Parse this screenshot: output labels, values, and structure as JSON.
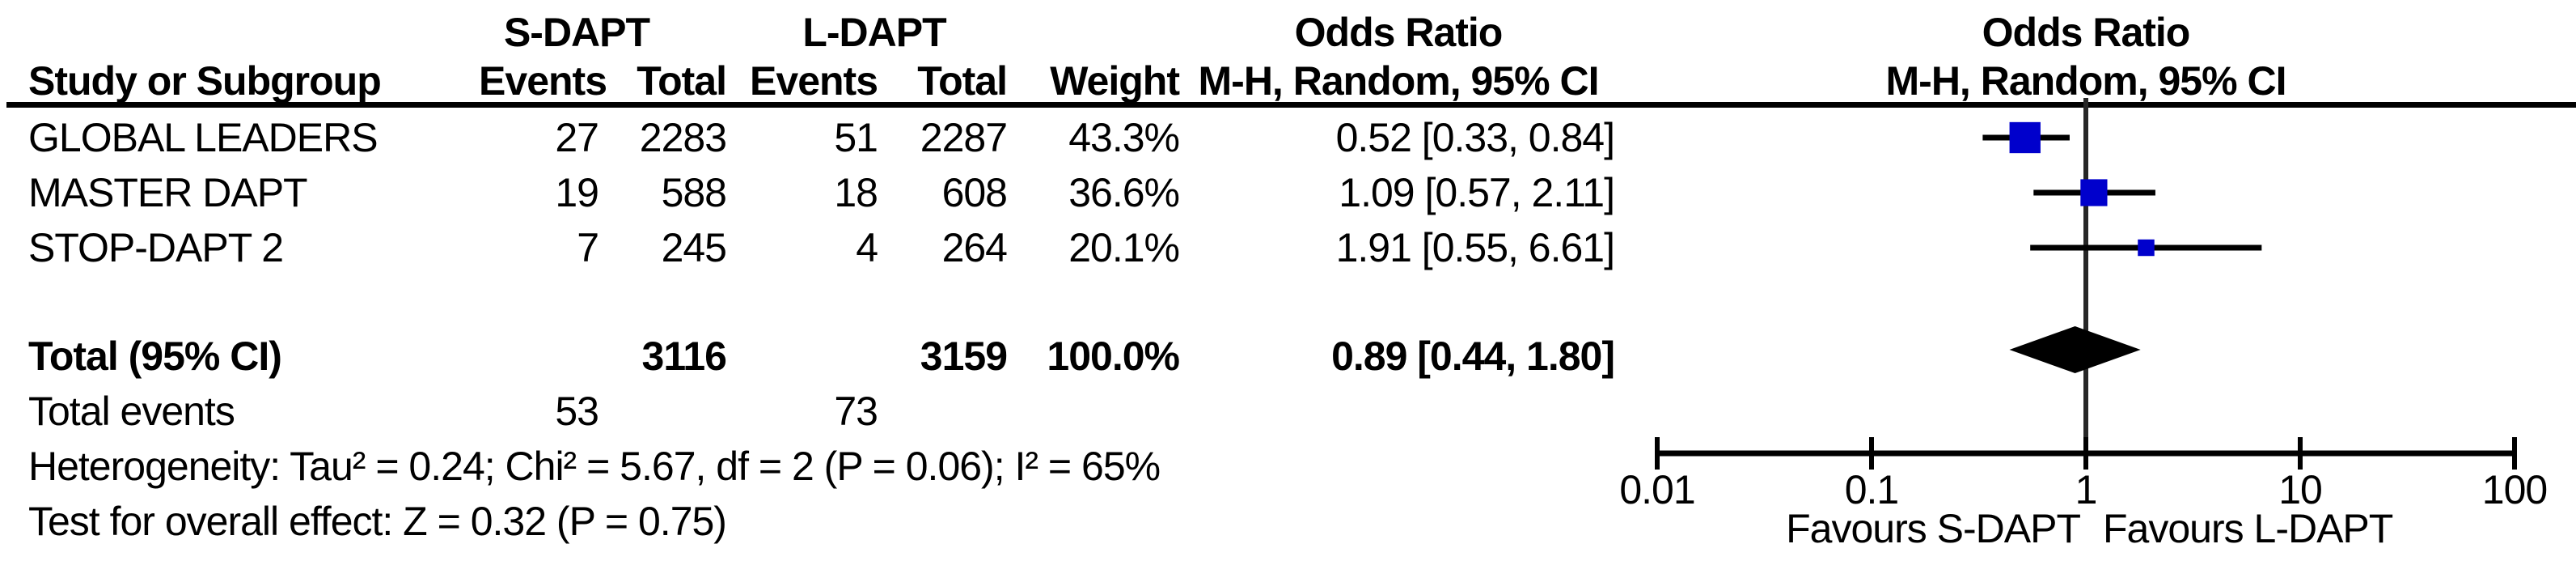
{
  "table": {
    "group1_label": "S-DAPT",
    "group2_label": "L-DAPT",
    "or_col_title": "Odds Ratio",
    "or_col_subtitle": "M-H, Random, 95% CI",
    "plot_title": "Odds Ratio",
    "plot_subtitle": "M-H, Random, 95% CI",
    "headers": {
      "study": "Study or Subgroup",
      "events": "Events",
      "total": "Total",
      "weight": "Weight"
    },
    "rows": [
      {
        "study": "GLOBAL LEADERS",
        "events1": "27",
        "total1": "2283",
        "events2": "51",
        "total2": "2287",
        "weight": "43.3%",
        "or_text": "0.52 [0.33, 0.84]"
      },
      {
        "study": "MASTER DAPT",
        "events1": "19",
        "total1": "588",
        "events2": "18",
        "total2": "608",
        "weight": "36.6%",
        "or_text": "1.09 [0.57, 2.11]"
      },
      {
        "study": "STOP-DAPT 2",
        "events1": "7",
        "total1": "245",
        "events2": "4",
        "total2": "264",
        "weight": "20.1%",
        "or_text": "1.91 [0.55, 6.61]"
      }
    ],
    "total_row": {
      "label": "Total (95% CI)",
      "total1": "3116",
      "total2": "3159",
      "weight": "100.0%",
      "or_text": "0.89 [0.44, 1.80]"
    },
    "total_events": {
      "label": "Total events",
      "events1": "53",
      "events2": "73"
    },
    "heterogeneity": "Heterogeneity: Tau² = 0.24; Chi² = 5.67, df = 2 (P = 0.06); I² = 65%",
    "overall_effect": "Test for overall effect: Z = 0.32 (P = 0.75)"
  },
  "chart_data": {
    "type": "forest",
    "scale": "log10",
    "axis_min": 0.01,
    "axis_max": 100,
    "axis_ticks": [
      0.01,
      0.1,
      1,
      10,
      100
    ],
    "axis_tick_labels": [
      "0.01",
      "0.1",
      "1",
      "10",
      "100"
    ],
    "null_line_value": 1,
    "favours_left": "Favours S-DAPT",
    "favours_right": "Favours L-DAPT",
    "marker_color": "#0000CC",
    "line_color": "#000000",
    "studies": [
      {
        "name": "GLOBAL LEADERS",
        "or": 0.52,
        "ci_low": 0.33,
        "ci_high": 0.84,
        "weight_pct": 43.3
      },
      {
        "name": "MASTER DAPT",
        "or": 1.09,
        "ci_low": 0.57,
        "ci_high": 2.11,
        "weight_pct": 36.6
      },
      {
        "name": "STOP-DAPT 2",
        "or": 1.91,
        "ci_low": 0.55,
        "ci_high": 6.61,
        "weight_pct": 20.1
      }
    ],
    "total": {
      "or": 0.89,
      "ci_low": 0.44,
      "ci_high": 1.8
    }
  }
}
